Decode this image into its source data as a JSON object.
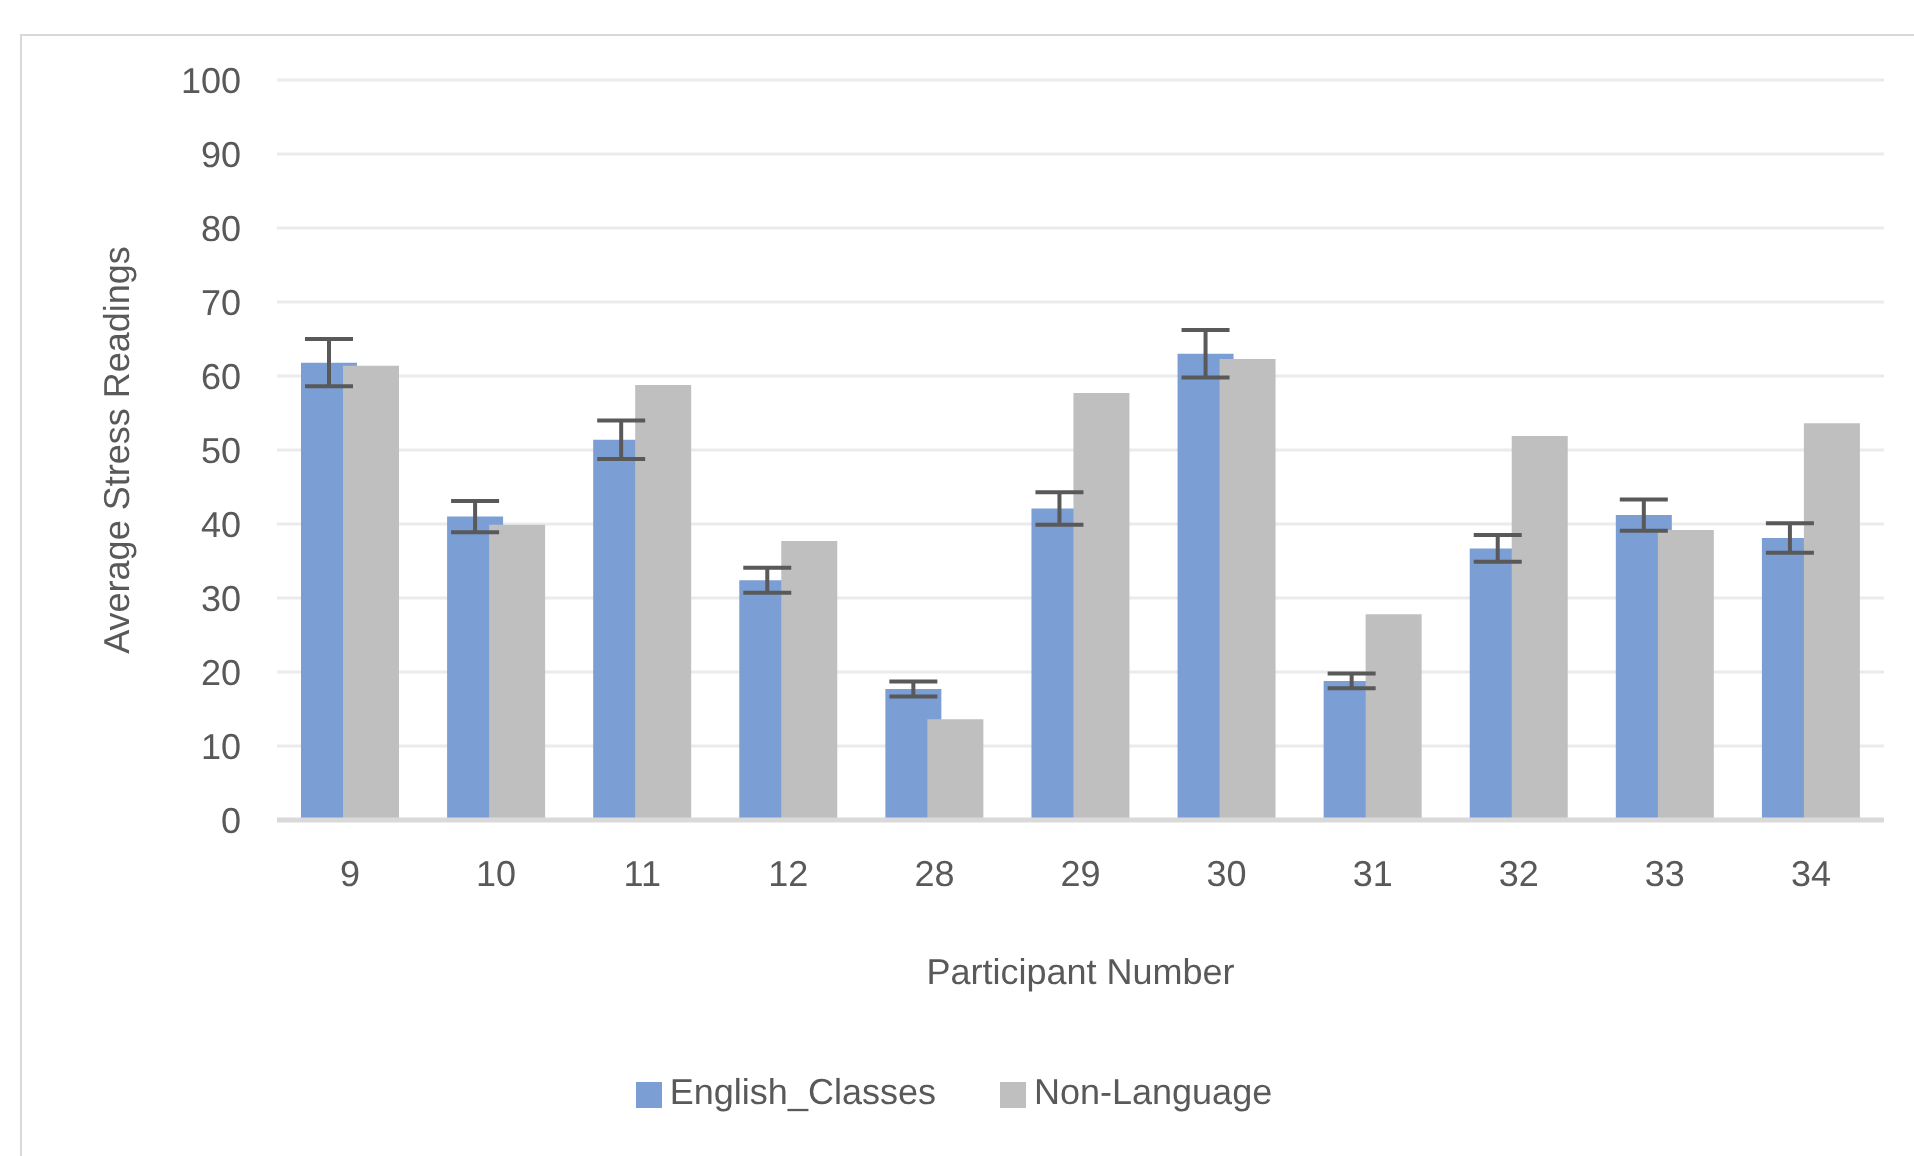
{
  "chart_data": {
    "type": "bar",
    "xlabel": "Participant Number",
    "ylabel": "Average Stress Readings",
    "categories": [
      "9",
      "10",
      "11",
      "12",
      "28",
      "29",
      "30",
      "31",
      "32",
      "33",
      "34"
    ],
    "series": [
      {
        "name": "English_Classes",
        "color": "#7b9fd5",
        "values": [
          61.8,
          41.0,
          51.4,
          32.4,
          17.7,
          42.1,
          63.0,
          18.8,
          36.7,
          41.2,
          38.1
        ],
        "errors": [
          3.2,
          2.1,
          2.6,
          1.7,
          1.0,
          2.2,
          3.2,
          1.0,
          1.8,
          2.1,
          2.0
        ]
      },
      {
        "name": "Non-Language",
        "color": "#bfbfbf",
        "values": [
          61.4,
          39.9,
          58.8,
          37.7,
          13.6,
          57.7,
          62.3,
          27.8,
          51.9,
          39.2,
          53.6
        ]
      }
    ],
    "ylim": [
      0,
      100
    ],
    "yticks": [
      0,
      10,
      20,
      30,
      40,
      50,
      60,
      70,
      80,
      90,
      100
    ],
    "grid": "y",
    "legend": "bottom"
  }
}
